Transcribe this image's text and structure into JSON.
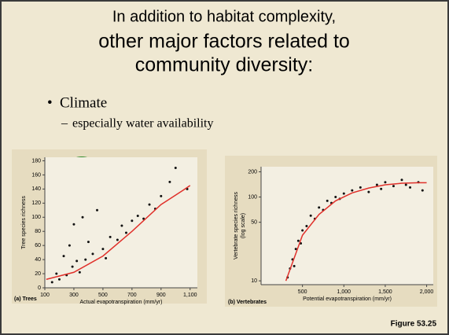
{
  "slide": {
    "title_line_1": "In addition to habitat complexity,",
    "title_line_2": "other major factors related to",
    "title_line_3": "community diversity:",
    "bullet": "Climate",
    "sub_bullet": "especially water availability",
    "figure_label": "Figure 53.25"
  },
  "chart_data": [
    {
      "type": "scatter",
      "panel_label": "(a) Trees",
      "xlabel": "Actual evapotranspiration (mm/yr)",
      "ylabel": "Tree species richness",
      "xlim": [
        100,
        1150
      ],
      "ylim": [
        0,
        185
      ],
      "xticks": [
        100,
        300,
        500,
        700,
        900,
        {
          "value": 1100,
          "label": "1,100"
        }
      ],
      "yticks": [
        0,
        20,
        40,
        60,
        80,
        100,
        120,
        140,
        160,
        180
      ],
      "log": false,
      "series": [
        {
          "mode": "points",
          "color": "#111111",
          "x": [
            150,
            180,
            200,
            230,
            250,
            270,
            290,
            300,
            320,
            340,
            360,
            380,
            400,
            430,
            460,
            500,
            520,
            550,
            600,
            630,
            660,
            700,
            740,
            780,
            820,
            860,
            900,
            960,
            1000,
            1080
          ],
          "values": [
            8,
            20,
            12,
            45,
            18,
            60,
            30,
            90,
            38,
            22,
            100,
            40,
            65,
            48,
            110,
            55,
            42,
            72,
            68,
            88,
            78,
            95,
            102,
            98,
            118,
            112,
            130,
            150,
            170,
            140
          ]
        },
        {
          "mode": "line",
          "color": "#e0302a",
          "x": [
            110,
            300,
            500,
            700,
            900,
            1050,
            1100
          ],
          "values": [
            12,
            22,
            45,
            80,
            118,
            138,
            145
          ]
        }
      ]
    },
    {
      "type": "scatter",
      "panel_label": "(b) Vertebrates",
      "xlabel": "Potential evapotranspiration (mm/yr)",
      "ylabel": "Vertebrate species richness",
      "ylabel_2": "(log scale)",
      "xlim": [
        0,
        2080
      ],
      "ylim": [
        9,
        230
      ],
      "xticks": [
        500,
        {
          "value": 1000,
          "label": "1,000"
        },
        {
          "value": 1500,
          "label": "1,500"
        },
        {
          "value": 2000,
          "label": "2,000"
        }
      ],
      "yticks": [
        10,
        50,
        100,
        200
      ],
      "log": true,
      "series": [
        {
          "mode": "points",
          "color": "#111111",
          "x": [
            320,
            350,
            380,
            400,
            420,
            450,
            480,
            500,
            550,
            600,
            650,
            700,
            750,
            800,
            850,
            900,
            950,
            1000,
            1100,
            1200,
            1300,
            1400,
            1450,
            1500,
            1600,
            1700,
            1750,
            1800,
            1900,
            1950
          ],
          "values": [
            11,
            14,
            18,
            15,
            24,
            30,
            28,
            40,
            45,
            60,
            55,
            75,
            70,
            90,
            85,
            100,
            95,
            110,
            120,
            130,
            115,
            140,
            125,
            150,
            135,
            160,
            140,
            130,
            150,
            120
          ]
        },
        {
          "mode": "line",
          "color": "#e0302a",
          "x": [
            300,
            500,
            700,
            900,
            1100,
            1300,
            1500,
            1700,
            1900,
            2000
          ],
          "values": [
            10,
            35,
            62,
            90,
            112,
            128,
            140,
            146,
            148,
            148
          ]
        }
      ]
    }
  ]
}
